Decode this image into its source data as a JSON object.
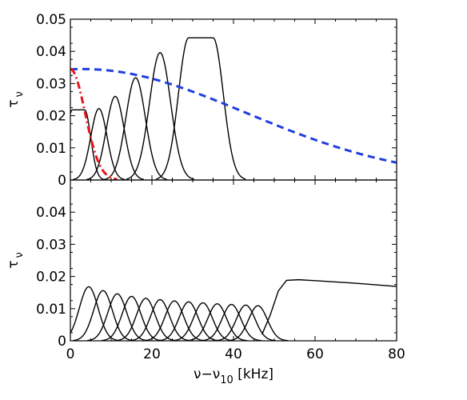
{
  "chart_data": [
    {
      "type": "line",
      "panel": "top",
      "xlim": [
        0,
        80
      ],
      "ylim": [
        0,
        0.05
      ],
      "xticks": [
        0,
        20,
        40,
        60,
        80
      ],
      "yticks": [
        "0",
        "0.01",
        "0.02",
        "0.03",
        "0.04",
        "0.05"
      ],
      "ylabel_main": "τ",
      "ylabel_sub": "ν",
      "show_xticklabels": false,
      "series": [
        {
          "kind": "flat",
          "center": 2,
          "halfwidth": 1.5,
          "sigma": 1.5,
          "peak": 0.0218,
          "color": "#000000",
          "style": "solid"
        },
        {
          "kind": "gauss",
          "center": 7,
          "sigma": 2.0,
          "peak": 0.0222,
          "color": "#000000",
          "style": "solid"
        },
        {
          "kind": "gauss",
          "center": 11,
          "sigma": 2.2,
          "peak": 0.026,
          "color": "#000000",
          "style": "solid"
        },
        {
          "kind": "gauss",
          "center": 16,
          "sigma": 2.4,
          "peak": 0.0318,
          "color": "#000000",
          "style": "solid"
        },
        {
          "kind": "gauss",
          "center": 22,
          "sigma": 2.6,
          "peak": 0.0396,
          "color": "#000000",
          "style": "solid"
        },
        {
          "kind": "flat",
          "center": 32,
          "halfwidth": 3,
          "sigma": 2.5,
          "peak": 0.0442,
          "color": "#000000",
          "style": "solid"
        },
        {
          "kind": "gauss",
          "center": 3,
          "sigma": 40,
          "peak": 0.0345,
          "color": "#1f3fdf",
          "style": "dashed"
        },
        {
          "kind": "gauss",
          "center": 0,
          "sigma": 3.6,
          "peak": 0.0345,
          "color": "#e8141e",
          "style": "dashdot"
        }
      ]
    },
    {
      "type": "line",
      "panel": "bottom",
      "xlim": [
        0,
        80
      ],
      "ylim": [
        0,
        0.05
      ],
      "xticks": [
        "0",
        "20",
        "40",
        "60",
        "80"
      ],
      "yticks": [
        "0",
        "0.01",
        "0.02",
        "0.03",
        "0.04"
      ],
      "ylabel_main": "τ",
      "ylabel_sub": "ν",
      "xlabel_pre": "ν−ν",
      "xlabel_sub": "10",
      "xlabel_post": " [kHz]",
      "show_xticklabels": true,
      "series": [
        {
          "kind": "gauss",
          "center": 4.5,
          "sigma": 2.3,
          "peak": 0.0168,
          "color": "#000000",
          "style": "solid"
        },
        {
          "kind": "gauss",
          "center": 8,
          "sigma": 2.3,
          "peak": 0.0156,
          "color": "#000000",
          "style": "solid"
        },
        {
          "kind": "gauss",
          "center": 11.5,
          "sigma": 2.3,
          "peak": 0.0146,
          "color": "#000000",
          "style": "solid"
        },
        {
          "kind": "gauss",
          "center": 15,
          "sigma": 2.3,
          "peak": 0.0138,
          "color": "#000000",
          "style": "solid"
        },
        {
          "kind": "gauss",
          "center": 18.5,
          "sigma": 2.3,
          "peak": 0.0132,
          "color": "#000000",
          "style": "solid"
        },
        {
          "kind": "gauss",
          "center": 22,
          "sigma": 2.3,
          "peak": 0.0128,
          "color": "#000000",
          "style": "solid"
        },
        {
          "kind": "gauss",
          "center": 25.5,
          "sigma": 2.3,
          "peak": 0.0124,
          "color": "#000000",
          "style": "solid"
        },
        {
          "kind": "gauss",
          "center": 29,
          "sigma": 2.3,
          "peak": 0.0121,
          "color": "#000000",
          "style": "solid"
        },
        {
          "kind": "gauss",
          "center": 32.5,
          "sigma": 2.3,
          "peak": 0.0118,
          "color": "#000000",
          "style": "solid"
        },
        {
          "kind": "gauss",
          "center": 36,
          "sigma": 2.3,
          "peak": 0.0115,
          "color": "#000000",
          "style": "solid"
        },
        {
          "kind": "gauss",
          "center": 39.5,
          "sigma": 2.3,
          "peak": 0.0113,
          "color": "#000000",
          "style": "solid"
        },
        {
          "kind": "gauss",
          "center": 43,
          "sigma": 2.3,
          "peak": 0.0111,
          "color": "#000000",
          "style": "solid"
        },
        {
          "kind": "gauss",
          "center": 46,
          "sigma": 2.3,
          "peak": 0.0109,
          "color": "#000000",
          "style": "solid"
        },
        {
          "kind": "plateau",
          "points": [
            [
              47,
              0.002
            ],
            [
              49,
              0.008
            ],
            [
              51,
              0.0155
            ],
            [
              53,
              0.0188
            ],
            [
              56,
              0.019
            ],
            [
              60,
              0.0187
            ],
            [
              70,
              0.0179
            ],
            [
              80,
              0.0169
            ]
          ],
          "color": "#000000",
          "style": "solid"
        }
      ]
    }
  ]
}
